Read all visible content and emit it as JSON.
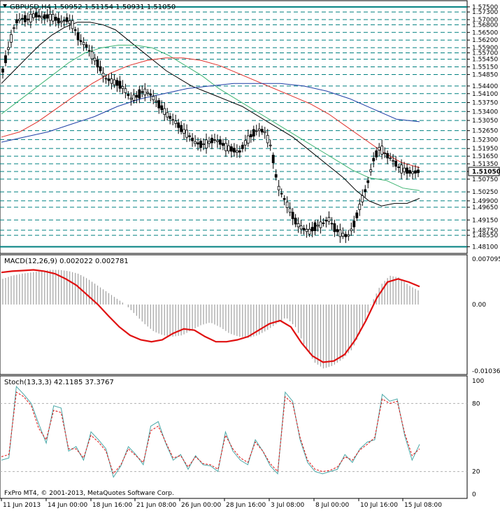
{
  "window": {
    "title": "GBPUSD,H4  1.50952 1.51154 1.50931 1.51050",
    "footer": "FxPro MT4, © 2001-2013, MetaQuotes Software Corp."
  },
  "colors": {
    "background": "#ffffff",
    "candles": "#000000",
    "sma_black": "#000000",
    "sma_green": "#3cb371",
    "sma_red": "#e0302a",
    "sma_blue": "#1f3fa6",
    "grid_dashed": "#008080",
    "macd_line": "#e01010",
    "macd_hist": "#a0a0a0",
    "stoch_main": "#4aa8a8",
    "stoch_signal": "#e01010",
    "current_price_bg": "#ffffff"
  },
  "chart_data": [
    {
      "type": "candlestick",
      "title": "GBPUSD,H4",
      "ohlc_header": "1.50952 1.51154 1.50931 1.51050",
      "ylim": [
        1.4795,
        1.5755
      ],
      "y_tick_labels": [
        "1.57500",
        "1.57300",
        "1.57000",
        "1.56800",
        "1.56500",
        "1.56200",
        "1.55900",
        "1.55700",
        "1.55450",
        "1.55150",
        "1.54850",
        "1.54400",
        "1.54100",
        "1.53750",
        "1.53400",
        "1.53050",
        "1.52650",
        "1.52300",
        "1.51950",
        "1.51650",
        "1.51350",
        "1.51050",
        "1.50750",
        "1.50250",
        "1.49900",
        "1.49650",
        "1.49150",
        "1.48750",
        "1.48550",
        "1.48100"
      ],
      "x_tick_labels": [
        "11 Jun 2013",
        "14 Jun 00:00",
        "18 Jun 16:00",
        "21 Jun 08:00",
        "26 Jun 00:00",
        "28 Jun 16:00",
        "3 Jul 08:00",
        "8 Jul 00:00",
        "10 Jul 16:00",
        "15 Jul 08:00"
      ],
      "current_price": "1.51050",
      "close_path": [
        1.55,
        1.56,
        1.569,
        1.5705,
        1.57,
        1.572,
        1.571,
        1.5712,
        1.5708,
        1.569,
        1.57,
        1.568,
        1.562,
        1.56,
        1.556,
        1.552,
        1.547,
        1.546,
        1.545,
        1.543,
        1.539,
        1.54,
        1.542,
        1.541,
        1.538,
        1.535,
        1.532,
        1.53,
        1.527,
        1.525,
        1.522,
        1.521,
        1.5215,
        1.523,
        1.522,
        1.52,
        1.519,
        1.518,
        1.522,
        1.525,
        1.527,
        1.526,
        1.52,
        1.505,
        1.5,
        1.495,
        1.49,
        1.488,
        1.487,
        1.489,
        1.49,
        1.492,
        1.488,
        1.486,
        1.485,
        1.49,
        1.498,
        1.505,
        1.515,
        1.52,
        1.517,
        1.515,
        1.512,
        1.511,
        1.51,
        1.5105
      ],
      "series": [
        {
          "name": "SMA black",
          "values": [
            1.545,
            1.55,
            1.555,
            1.56,
            1.564,
            1.567,
            1.569,
            1.569,
            1.568,
            1.566,
            1.562,
            1.558,
            1.554,
            1.55,
            1.547,
            1.544,
            1.542,
            1.54,
            1.538,
            1.536,
            1.533,
            1.53,
            1.527,
            1.524,
            1.52,
            1.516,
            1.512,
            1.508,
            1.503,
            1.499,
            1.497,
            1.498,
            1.498,
            1.5
          ]
        },
        {
          "name": "SMA green",
          "values": [
            1.533,
            1.538,
            1.543,
            1.548,
            1.553,
            1.557,
            1.559,
            1.56,
            1.56,
            1.559,
            1.556,
            1.552,
            1.548,
            1.543,
            1.539,
            1.535,
            1.531,
            1.527,
            1.523,
            1.519,
            1.515,
            1.511,
            1.508,
            1.507,
            1.504,
            1.503
          ]
        },
        {
          "name": "SMA red",
          "values": [
            1.524,
            1.526,
            1.53,
            1.535,
            1.54,
            1.545,
            1.549,
            1.552,
            1.554,
            1.555,
            1.555,
            1.554,
            1.552,
            1.549,
            1.546,
            1.543,
            1.54,
            1.537,
            1.533,
            1.528,
            1.523,
            1.518,
            1.514,
            1.512
          ]
        },
        {
          "name": "SMA blue",
          "values": [
            1.522,
            1.524,
            1.526,
            1.529,
            1.532,
            1.536,
            1.539,
            1.541,
            1.543,
            1.544,
            1.545,
            1.545,
            1.545,
            1.544,
            1.542,
            1.539,
            1.535,
            1.531,
            1.53
          ]
        }
      ]
    },
    {
      "type": "bar",
      "title": "MACD(12,26,9) 0.002022 0.002781",
      "ylim": [
        -0.01036,
        0.007095
      ],
      "y_tick_labels": [
        "0.007095",
        "0.00",
        "-0.010363"
      ],
      "histogram": [
        0.004,
        0.0045,
        0.0048,
        0.005,
        0.0052,
        0.0054,
        0.0054,
        0.0052,
        0.0048,
        0.004,
        0.003,
        0.002,
        0.001,
        0.0,
        -0.0015,
        -0.003,
        -0.0042,
        -0.0048,
        -0.005,
        -0.0048,
        -0.004,
        -0.0032,
        -0.0028,
        -0.0035,
        -0.0045,
        -0.005,
        -0.0052,
        -0.0048,
        -0.004,
        -0.003,
        -0.002,
        -0.0035,
        -0.0065,
        -0.009,
        -0.01,
        -0.0095,
        -0.0085,
        -0.007,
        -0.004,
        0.0,
        0.003,
        0.0045,
        0.0042,
        0.003,
        0.0022
      ],
      "signal": [
        0.005,
        0.0052,
        0.0053,
        0.0054,
        0.0052,
        0.0048,
        0.004,
        0.003,
        0.0015,
        0.0,
        -0.0018,
        -0.0035,
        -0.0048,
        -0.0055,
        -0.0058,
        -0.0055,
        -0.0045,
        -0.0038,
        -0.004,
        -0.005,
        -0.0058,
        -0.0058,
        -0.0055,
        -0.005,
        -0.004,
        -0.003,
        -0.0025,
        -0.0035,
        -0.006,
        -0.008,
        -0.009,
        -0.0088,
        -0.0078,
        -0.0055,
        -0.0025,
        0.001,
        0.0035,
        0.004,
        0.0035,
        0.0028
      ]
    },
    {
      "type": "line",
      "title": "Stoch(13,3,3) 42.1185 37.3767",
      "ylim": [
        0,
        100
      ],
      "y_tick_labels": [
        "100",
        "80",
        "20",
        "0"
      ],
      "series": [
        {
          "name": "Main",
          "values": [
            30,
            32,
            95,
            88,
            80,
            62,
            45,
            78,
            76,
            38,
            42,
            30,
            55,
            48,
            40,
            15,
            25,
            42,
            35,
            26,
            60,
            64,
            45,
            30,
            35,
            22,
            34,
            26,
            25,
            20,
            55,
            38,
            30,
            26,
            48,
            38,
            25,
            18,
            90,
            82,
            48,
            28,
            20,
            18,
            20,
            22,
            35,
            28,
            40,
            46,
            48,
            88,
            82,
            84,
            52,
            30,
            44
          ]
        },
        {
          "name": "Signal",
          "values": [
            33,
            35,
            90,
            86,
            78,
            58,
            48,
            74,
            72,
            40,
            40,
            32,
            52,
            46,
            38,
            18,
            26,
            40,
            34,
            28,
            56,
            60,
            46,
            32,
            34,
            24,
            33,
            27,
            26,
            22,
            52,
            40,
            32,
            28,
            46,
            38,
            27,
            20,
            86,
            80,
            50,
            30,
            22,
            20,
            21,
            24,
            33,
            30,
            39,
            44,
            50,
            84,
            80,
            82,
            54,
            34,
            40
          ]
        }
      ]
    }
  ]
}
